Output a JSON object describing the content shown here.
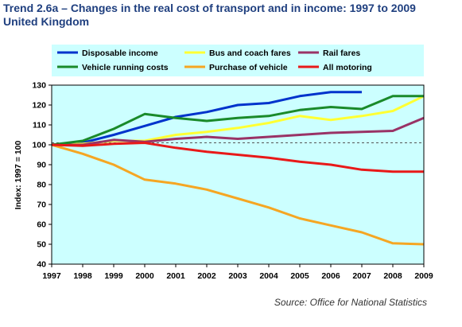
{
  "title_line1": "Trend 2.6a – Changes in the real cost of transport and in income: 1997 to 2009",
  "title_line2": "United Kingdom",
  "source": "Source: Office for National Statistics",
  "colors": {
    "plot_bg": "#ccffff",
    "frame": "#000000",
    "title": "#1f3f7f"
  },
  "chart_data": {
    "type": "line",
    "title": "Trend 2.6a – Changes in the real cost of transport and in income: 1997 to 2009",
    "xlabel": "",
    "ylabel": "Index: 1997 = 100",
    "x": [
      "1997",
      "1998",
      "1999",
      "2000",
      "2001",
      "2002",
      "2003",
      "2004",
      "2005",
      "2006",
      "2007",
      "2008",
      "2009"
    ],
    "ylim": [
      40,
      130
    ],
    "yticks": [
      "40",
      "50",
      "60",
      "70",
      "80",
      "90",
      "100",
      "110",
      "120",
      "130"
    ],
    "reference_line": 101,
    "grid": false,
    "legend_position": "top",
    "series": [
      {
        "name": "Disposable income",
        "color": "#0033cc",
        "values": [
          100,
          101,
          105,
          109.5,
          114,
          116.5,
          120,
          121,
          124.5,
          126.5,
          126.5,
          null,
          null
        ]
      },
      {
        "name": "Bus and coach fares",
        "color": "#ffff33",
        "values": [
          100,
          100.5,
          102,
          102,
          105,
          106.5,
          108.5,
          111,
          114.5,
          112.5,
          114.5,
          117,
          124.5
        ]
      },
      {
        "name": "Rail fares",
        "color": "#993366",
        "values": [
          100,
          100,
          102.5,
          101.5,
          103,
          104,
          103,
          104,
          105,
          106,
          106.5,
          107,
          113.5
        ]
      },
      {
        "name": "Vehicle running costs",
        "color": "#1a8a2a",
        "values": [
          100,
          102,
          108,
          115.5,
          113.5,
          112,
          113.5,
          114.5,
          117.5,
          119,
          118,
          124.5,
          124.5
        ]
      },
      {
        "name": "Purchase of vehicle",
        "color": "#f5a623",
        "values": [
          100,
          95.5,
          90,
          82.5,
          80.5,
          77.5,
          73,
          68.5,
          63,
          59.5,
          56,
          50.5,
          50
        ]
      },
      {
        "name": "All motoring",
        "color": "#e81919",
        "values": [
          100,
          99.5,
          100.5,
          101,
          98.5,
          96.5,
          95,
          93.5,
          91.5,
          90,
          87.5,
          86.5,
          86.5
        ]
      }
    ]
  }
}
